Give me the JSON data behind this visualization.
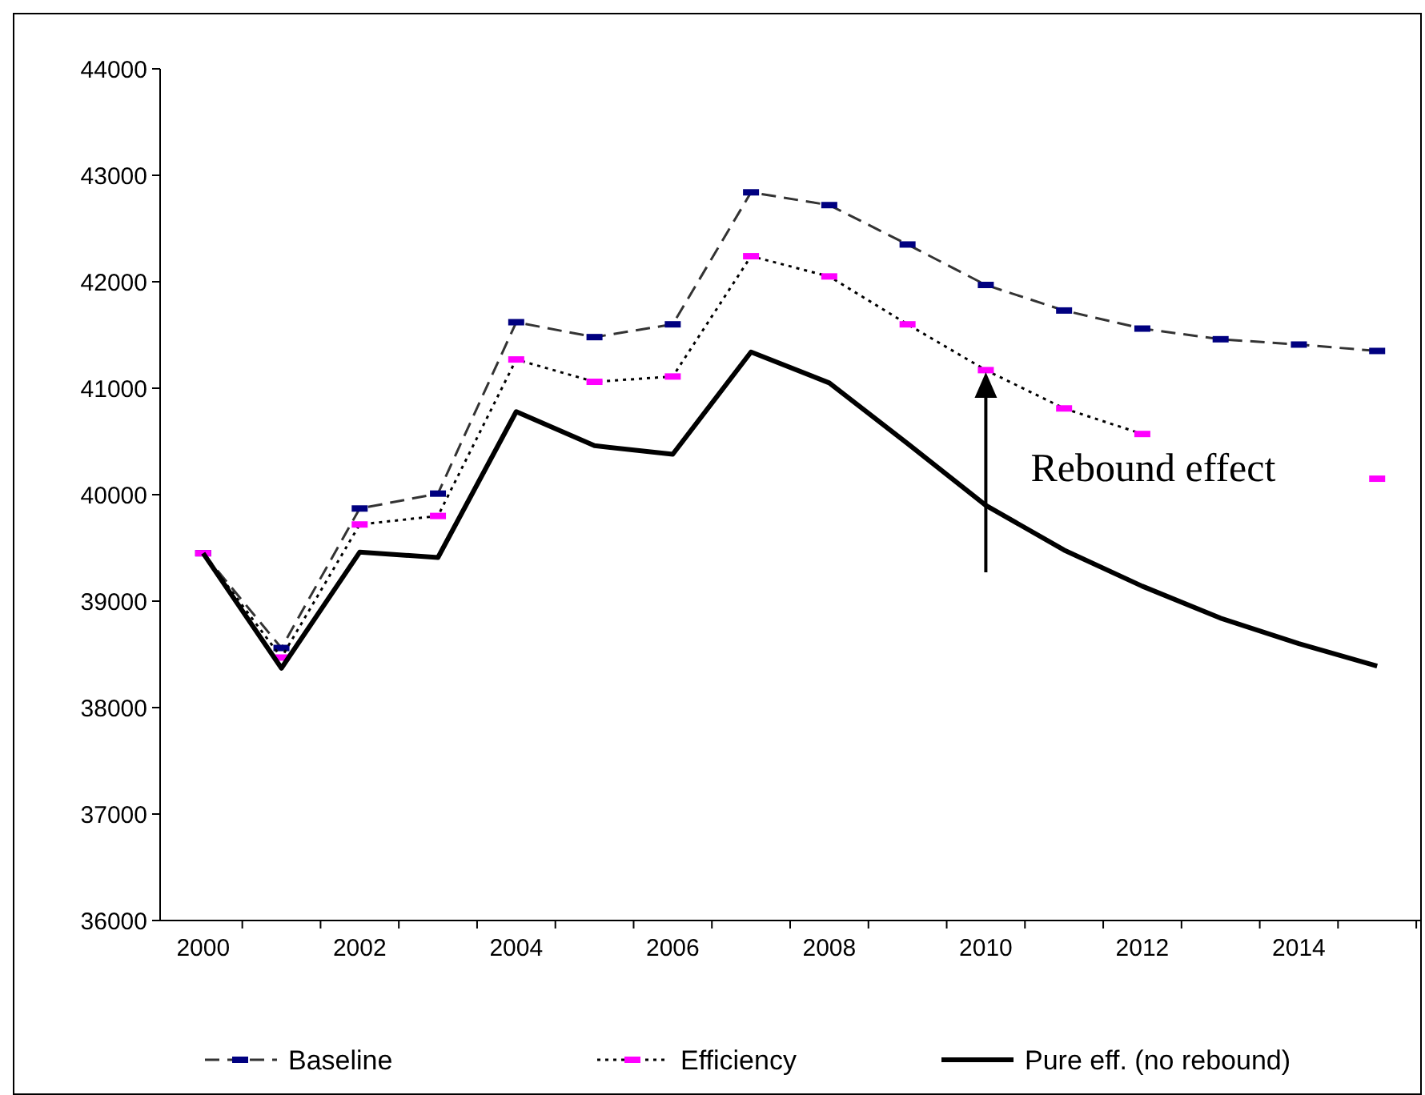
{
  "chart_data": {
    "type": "line",
    "categories": [
      "2000",
      null,
      "2002",
      null,
      "2004",
      null,
      "2006",
      null,
      "2008",
      null,
      "2010",
      null,
      "2012",
      null,
      "2014",
      null
    ],
    "ylim": [
      36000,
      44000
    ],
    "yticks": [
      36000,
      37000,
      38000,
      39000,
      40000,
      41000,
      42000,
      43000,
      44000
    ],
    "grid": false,
    "legend": "bottom",
    "series": [
      {
        "name": "Baseline",
        "color": "#000080",
        "line_style": "dashed",
        "marker": "square",
        "values": [
          39450,
          38560,
          39870,
          40010,
          41620,
          41480,
          41600,
          42840,
          42720,
          42350,
          41970,
          41730,
          41560,
          41460,
          41410,
          41350
        ]
      },
      {
        "name": "Efficiency",
        "color": "#ff00ff",
        "line_style": "dotted",
        "marker": "square",
        "values": [
          39450,
          38470,
          39720,
          39800,
          41270,
          41060,
          41110,
          42240,
          42050,
          41600,
          41170,
          40810,
          40570,
          null,
          null,
          40150
        ]
      },
      {
        "name": "Pure eff. (no rebound)",
        "color": "#000000",
        "line_style": "solid",
        "marker": "none",
        "values": [
          39450,
          38370,
          39460,
          39410,
          40780,
          40460,
          40380,
          41340,
          41050,
          40480,
          39900,
          39480,
          39140,
          38840,
          38600,
          38390
        ]
      }
    ],
    "annotations": [
      {
        "text": "Rebound effect",
        "x": "2010",
        "y": 41150
      }
    ]
  }
}
